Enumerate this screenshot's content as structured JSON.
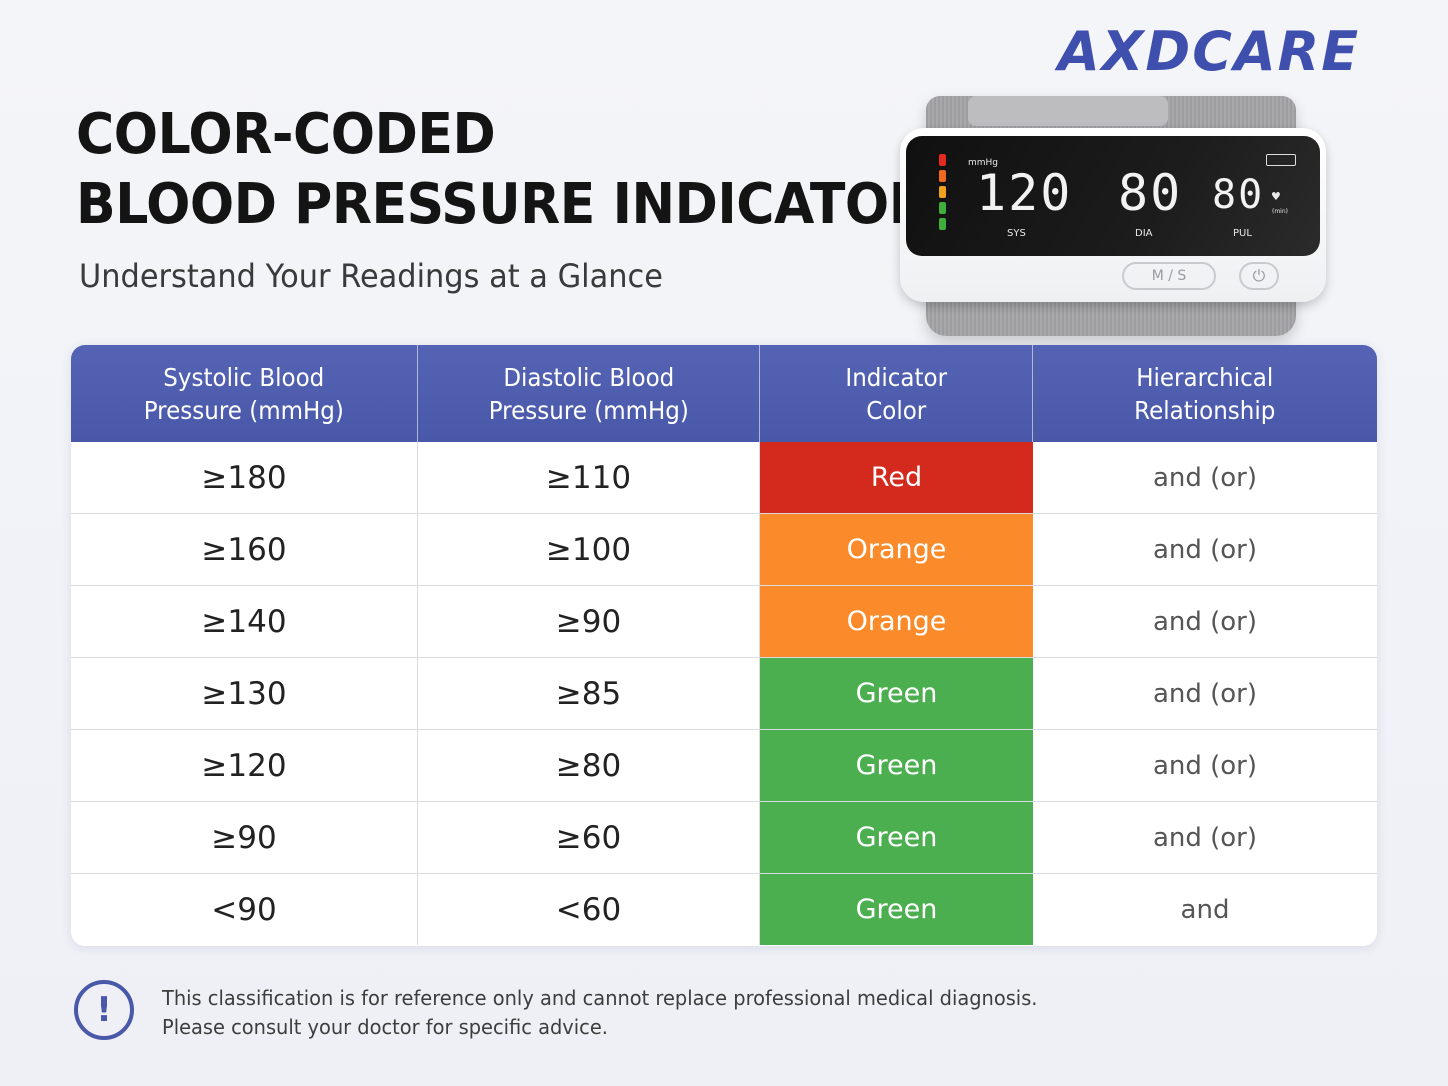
{
  "brand": "AXDCARE",
  "title_line1": "COLOR-CODED",
  "title_line2": "BLOOD PRESSURE INDICATOR",
  "subtitle": "Understand Your Readings at a Glance",
  "device": {
    "unit": "mmHg",
    "sys_value": "120",
    "dia_value": "80",
    "pul_value": "80",
    "sys_label": "SYS",
    "dia_label": "DIA",
    "pul_label": "PUL",
    "pul_unit": "(min)",
    "ms_button": "M / S",
    "power_icon": "power-icon",
    "indicator_colors": [
      "#e32a1e",
      "#f0691f",
      "#f0a01f",
      "#3fae3c",
      "#3fae3c"
    ]
  },
  "table": {
    "headers": [
      "Systolic Blood\nPressure (mmHg)",
      "Diastolic Blood\nPressure (mmHg)",
      "Indicator\nColor",
      "Hierarchical\nRelationship"
    ],
    "rows": [
      {
        "systolic": "≥180",
        "diastolic": "≥110",
        "color": "Red",
        "hex": "#d42a1e",
        "relation": "and (or)"
      },
      {
        "systolic": "≥160",
        "diastolic": "≥100",
        "color": "Orange",
        "hex": "#fb8a2a",
        "relation": "and (or)"
      },
      {
        "systolic": "≥140",
        "diastolic": "≥90",
        "color": "Orange",
        "hex": "#fb8a2a",
        "relation": "and (or)"
      },
      {
        "systolic": "≥130",
        "diastolic": "≥85",
        "color": "Green",
        "hex": "#4caf4f",
        "relation": "and (or)"
      },
      {
        "systolic": "≥120",
        "diastolic": "≥80",
        "color": "Green",
        "hex": "#4caf4f",
        "relation": "and (or)"
      },
      {
        "systolic": "≥90",
        "diastolic": "≥60",
        "color": "Green",
        "hex": "#4caf4f",
        "relation": "and (or)"
      },
      {
        "systolic": "<90",
        "diastolic": "<60",
        "color": "Green",
        "hex": "#4caf4f",
        "relation": "and"
      }
    ]
  },
  "note_line1": "This classification is for reference only and cannot replace professional medical diagnosis.",
  "note_line2": "Please consult your doctor for specific advice.",
  "warning_icon": "exclamation-icon",
  "warning_glyph": "!"
}
